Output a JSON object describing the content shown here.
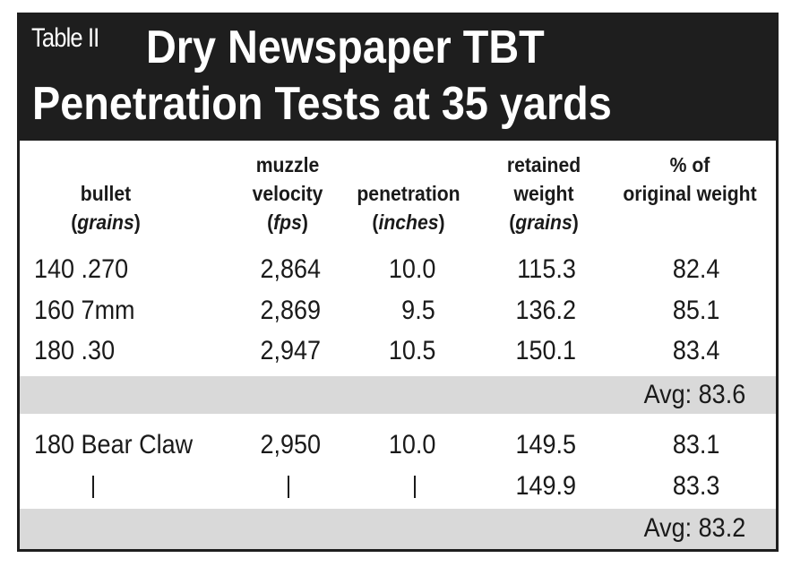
{
  "header": {
    "label": "Table II",
    "title_line1": "Dry Newspaper TBT",
    "title_line2": "Penetration Tests at 35 yards"
  },
  "columns": {
    "bullet": {
      "line1": "bullet",
      "unit_open": "(",
      "unit": "grains",
      "unit_close": ")"
    },
    "velocity": {
      "line1": "muzzle",
      "line2": "velocity",
      "unit_open": "(",
      "unit": "fps",
      "unit_close": ")"
    },
    "penetration": {
      "line1": "penetration",
      "unit_open": "(",
      "unit": "inches",
      "unit_close": ")"
    },
    "retained": {
      "line1": "retained",
      "line2": "weight",
      "unit_open": "(",
      "unit": "grains",
      "unit_close": ")"
    },
    "percent": {
      "line1": "% of",
      "line2": "original weight"
    }
  },
  "rows": [
    {
      "bullet": "140 .270",
      "velocity": "2,864",
      "penetration": "10.0",
      "retained": "115.3",
      "percent": "82.4"
    },
    {
      "bullet": "160 7mm",
      "velocity": "2,869",
      "penetration": "9.5",
      "retained": "136.2",
      "percent": "85.1"
    },
    {
      "bullet": "180 .30",
      "velocity": "2,947",
      "penetration": "10.5",
      "retained": "150.1",
      "percent": "83.4"
    }
  ],
  "avg_group1": "Avg: 83.6",
  "bear_claw_rows": [
    {
      "bullet": "180 Bear Claw",
      "velocity": "2,950",
      "penetration": "10.0",
      "retained": "149.5",
      "percent": "83.1"
    },
    {
      "retained": "149.9",
      "percent": "83.3"
    }
  ],
  "avg_group2": "Avg: 83.2",
  "colors": {
    "header_bg": "#1e1e1e",
    "shade": "#d9d9d9",
    "text": "#1a1a1a"
  }
}
